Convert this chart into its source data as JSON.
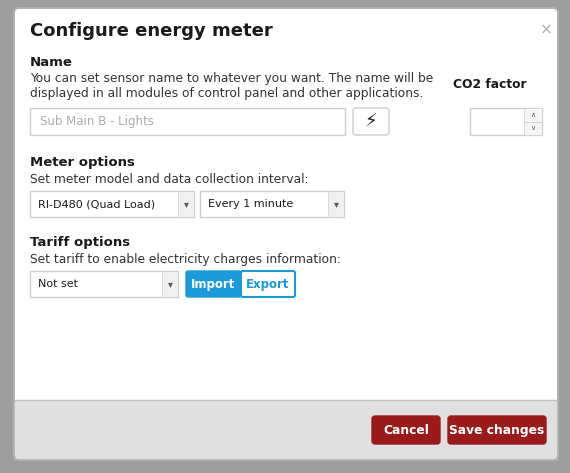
{
  "title": "Configure energy meter",
  "close_x": "×",
  "section1_label": "Name",
  "section1_desc_line1": "You can set sensor name to whatever you want. The name will be",
  "section1_desc_line2": "displayed in all modules of control panel and other applications.",
  "co2_label": "CO2 factor",
  "name_input": "Sub Main B - Lights",
  "section2_label": "Meter options",
  "section2_desc": "Set meter model and data collection interval:",
  "dropdown1": "RI-D480 (Quad Load)",
  "dropdown2": "Every 1 minute",
  "section3_label": "Tariff options",
  "section3_desc": "Set tariff to enable electricity charges information:",
  "dropdown3": "Not set",
  "btn_import": "Import",
  "btn_export": "Export",
  "btn_cancel": "Cancel",
  "btn_save": "Save changes",
  "bg_outer": "#9e9e9e",
  "bg_modal": "#ffffff",
  "bg_footer": "#e0e0e0",
  "border_modal": "#b0b0b0",
  "input_border": "#cccccc",
  "spinner_bg": "#f5f5f5",
  "dropdown_arrow_bg": "#f0f0f0",
  "btn_cancel_color": "#9b1a1a",
  "btn_save_color": "#9b1a1a",
  "btn_import_bg": "#1a9ad6",
  "btn_export_border": "#1a9ad6",
  "btn_export_text": "#1a9ad6",
  "text_color": "#1a1a1a",
  "desc_color": "#333333",
  "placeholder_color": "#aaaaaa",
  "close_color": "#aaaaaa"
}
